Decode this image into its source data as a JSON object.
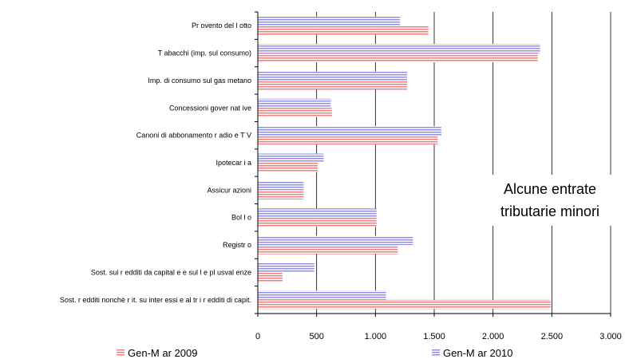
{
  "chart_data": {
    "type": "bar",
    "orientation": "horizontal",
    "title": "Alcune entrate tributarie minori",
    "title_lines": [
      "Alcune  entrate",
      "tributarie minori"
    ],
    "categories": [
      "Pr ovento del l otto",
      "T abacchi (imp. sul consumo)",
      "Imp. di consumo sul gas metano",
      "Concessioni gover nat ive",
      "Canoni di abbonamento r adio e T V",
      "Ipotecar i a",
      "Assicur azioni",
      "Bol l o",
      "Registr o",
      "Sost. sui r edditi da capital e e sul l e pl usval enze",
      "Sost. r edditi nonchè r it. su inter essi e al tr i r edditi di capit."
    ],
    "series": [
      {
        "name": "Gen-M ar 2009",
        "color": "#f08080",
        "values": [
          1450,
          2380,
          1270,
          630,
          1530,
          510,
          390,
          1010,
          1190,
          210,
          2490
        ]
      },
      {
        "name": "Gen-M ar 2010",
        "color": "#9090e8",
        "values": [
          1210,
          2400,
          1270,
          620,
          1560,
          560,
          390,
          1010,
          1320,
          480,
          1090
        ]
      }
    ],
    "xlim": [
      0,
      3000
    ],
    "xticks": [
      0,
      500,
      1000,
      1500,
      2000,
      2500,
      3000
    ],
    "xtick_labels": [
      "0",
      "500",
      "1.000",
      "1.500",
      "2.000",
      "2.500",
      "3.000"
    ],
    "xlabel": "",
    "ylabel": "",
    "grid": "vertical",
    "legend_position": "bottom"
  }
}
